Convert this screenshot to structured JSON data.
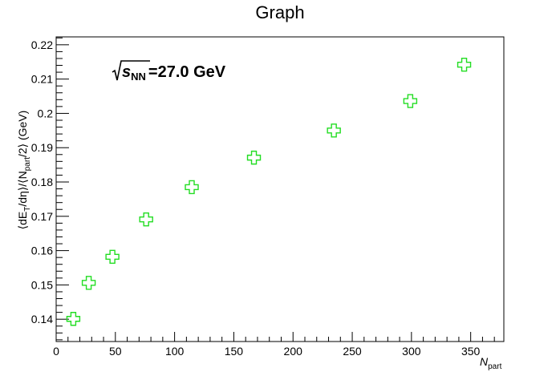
{
  "chart_data": {
    "type": "scatter",
    "title": "Graph",
    "xlabel": {
      "base": "N",
      "sub": "part"
    },
    "ylabel": {
      "pre": "⟨dE",
      "sub1": "T",
      "mid": "/dη⟩/⟨N",
      "sub2": "part",
      "post": "/2⟩ (GeV)"
    },
    "annotation": {
      "sub": "NN",
      "text": "=27.0 GeV"
    },
    "xlim": [
      0,
      378
    ],
    "ylim": [
      0.1335,
      0.2223
    ],
    "x_ticks": [
      0,
      50,
      100,
      150,
      200,
      250,
      300,
      350
    ],
    "y_ticks": [
      0.14,
      0.15,
      0.16,
      0.17,
      0.18,
      0.19,
      0.2,
      0.21,
      0.22
    ],
    "x_tick_labels": [
      "0",
      "50",
      "100",
      "150",
      "200",
      "250",
      "300",
      "350"
    ],
    "y_tick_labels": [
      "0.14",
      "0.15",
      "0.16",
      "0.17",
      "0.18",
      "0.19",
      "0.2",
      "0.21",
      "0.22"
    ],
    "marker": "open-cross",
    "marker_color": "#22dd22",
    "grid": false,
    "series": [
      {
        "x": [
          14.5,
          27.5,
          47.5,
          76.0,
          114.5,
          167.0,
          234.5,
          299.0,
          344.5
        ],
        "y": [
          0.1401,
          0.1506,
          0.1582,
          0.1691,
          0.1785,
          0.1871,
          0.195,
          0.2036,
          0.2142
        ]
      }
    ]
  }
}
